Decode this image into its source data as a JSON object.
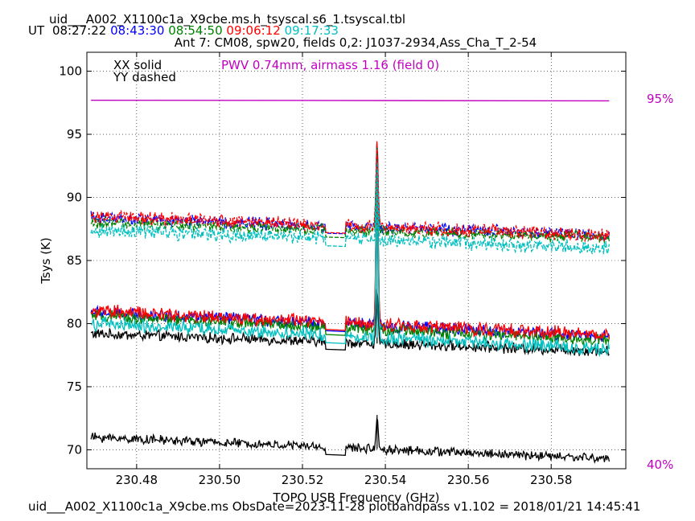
{
  "header": {
    "filename": "uid___A002_X1100c1a_X9cbe.ms.h_tsyscal.s6_1.tsyscal.tbl",
    "ut_label": "UT",
    "times": [
      {
        "text": "08:27:22",
        "color": "#000000"
      },
      {
        "text": "08:43:30",
        "color": "#0000ff"
      },
      {
        "text": "08:54:50",
        "color": "#008000"
      },
      {
        "text": "09:06:12",
        "color": "#ff0000"
      },
      {
        "text": "09:17:33",
        "color": "#00bfbf"
      }
    ],
    "subtitle": "Ant 7: CM08,  spw20,  fields 0,2: J1037-2934,Ass_Cha_T_2-54"
  },
  "footer": "uid___A002_X1100c1a_X9cbe.ms  ObsDate=2023-11-28   plotbandpass v1.102 = 2018/01/21 14:45:41",
  "chart_data": {
    "type": "line",
    "xlabel": "TOPO USB Frequency (GHz)",
    "ylabel": "Tsys (K)",
    "xlim": [
      230.468,
      230.598
    ],
    "ylim": [
      68.5,
      101.5
    ],
    "xticks": [
      230.48,
      230.5,
      230.52,
      230.54,
      230.56,
      230.58
    ],
    "xtick_labels": [
      "230.48",
      "230.50",
      "230.52",
      "230.54",
      "230.56",
      "230.58"
    ],
    "yticks": [
      70,
      75,
      80,
      85,
      90,
      95,
      100
    ],
    "ytick_labels": [
      "70",
      "75",
      "80",
      "85",
      "90",
      "95",
      "100"
    ],
    "grid": true,
    "legend_text": [
      "XX solid",
      "YY dashed"
    ],
    "annotation": {
      "text": "PWV 0.74mm, airmass 1.16 (field 0)",
      "color": "#c000c0"
    },
    "right_axis_labels": [
      {
        "text": "95%",
        "color": "#c000c0"
      },
      {
        "text": "40%",
        "color": "#c000c0"
      }
    ],
    "x_range": [
      230.469,
      230.594
    ],
    "gap": [
      230.5255,
      230.5305
    ],
    "line_x": 230.538,
    "transmission": {
      "color": "#c000c0",
      "start": 97.7,
      "end": 97.65
    },
    "series": [
      {
        "color": "#000000",
        "style": "solid",
        "start": 79.2,
        "end": 77.8,
        "noise": 0.35,
        "peak": 4.0
      },
      {
        "color": "#000000",
        "style": "solid",
        "start": 71.0,
        "end": 69.3,
        "noise": 0.3,
        "peak": 2.7
      },
      {
        "color": "#0000ff",
        "style": "solid",
        "start": 80.9,
        "end": 79.0,
        "noise": 0.4,
        "peak": 14.0
      },
      {
        "color": "#008000",
        "style": "solid",
        "start": 80.6,
        "end": 78.7,
        "noise": 0.4,
        "peak": 14.5
      },
      {
        "color": "#ff0000",
        "style": "solid",
        "start": 81.0,
        "end": 79.1,
        "noise": 0.45,
        "peak": 14.2
      },
      {
        "color": "#00bfbf",
        "style": "solid",
        "start": 80.0,
        "end": 78.0,
        "noise": 0.45,
        "peak": 13.5
      },
      {
        "color": "#0000ff",
        "style": "dashed",
        "start": 88.4,
        "end": 87.0,
        "noise": 0.4,
        "peak": 6.6
      },
      {
        "color": "#008000",
        "style": "dashed",
        "start": 88.0,
        "end": 86.8,
        "noise": 0.4,
        "peak": 6.8
      },
      {
        "color": "#ff0000",
        "style": "dashed",
        "start": 88.5,
        "end": 87.0,
        "noise": 0.45,
        "peak": 6.7
      },
      {
        "color": "#00bfbf",
        "style": "dashed",
        "start": 87.4,
        "end": 86.0,
        "noise": 0.45,
        "peak": 6.2
      }
    ]
  }
}
